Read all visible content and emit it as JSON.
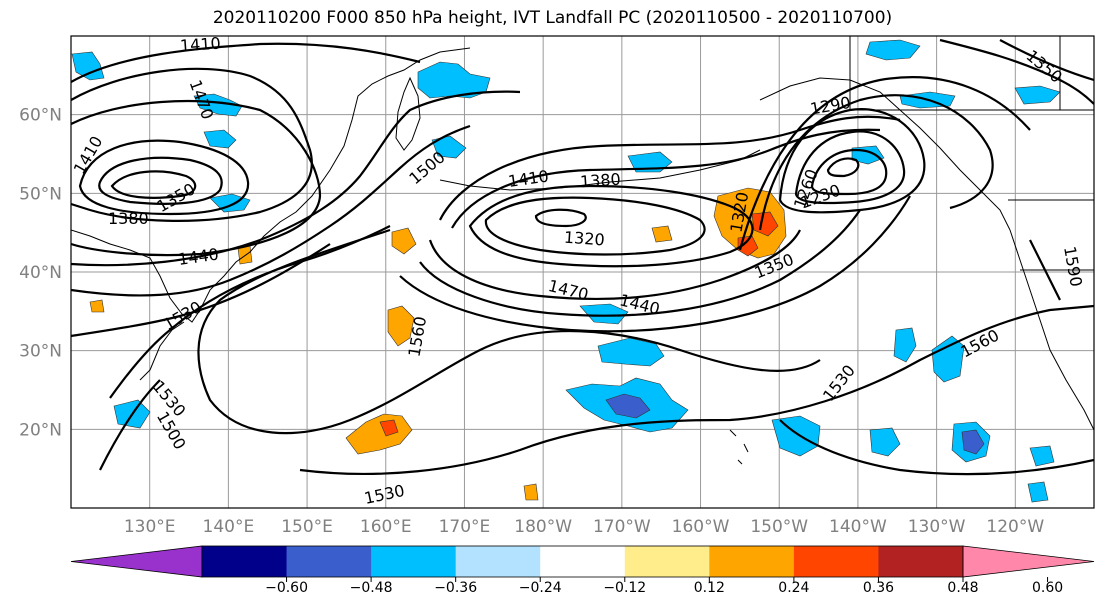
{
  "title": "2020110200 F000 850 hPa height, IVT Landfall PC (2020110500 - 2020110700)",
  "map": {
    "lon_range": [
      120,
      250
    ],
    "lat_range": [
      10,
      70
    ],
    "lat_ticks": [
      {
        "value": 20,
        "label": "20°N"
      },
      {
        "value": 30,
        "label": "30°N"
      },
      {
        "value": 40,
        "label": "40°N"
      },
      {
        "value": 50,
        "label": "50°N"
      },
      {
        "value": 60,
        "label": "60°N"
      }
    ],
    "lon_ticks": [
      {
        "value": 130,
        "label": "130°E"
      },
      {
        "value": 140,
        "label": "140°E"
      },
      {
        "value": 150,
        "label": "150°E"
      },
      {
        "value": 160,
        "label": "160°E"
      },
      {
        "value": 170,
        "label": "170°E"
      },
      {
        "value": 180,
        "label": "180°W"
      },
      {
        "value": 190,
        "label": "170°W"
      },
      {
        "value": 200,
        "label": "160°W"
      },
      {
        "value": 210,
        "label": "150°W"
      },
      {
        "value": 220,
        "label": "140°W"
      },
      {
        "value": 230,
        "label": "130°W"
      },
      {
        "value": 240,
        "label": "120°W"
      }
    ],
    "grid": true,
    "height_contour_labels": [
      "1410",
      "1470",
      "1410",
      "1350",
      "1380",
      "1440",
      "1530",
      "1530",
      "1500",
      "1530",
      "1560",
      "1500",
      "1410",
      "1380",
      "1320",
      "1470",
      "1440",
      "1320",
      "1260",
      "1230",
      "1350",
      "1290",
      "1350",
      "1590",
      "1560",
      "1530"
    ]
  },
  "colorbar": {
    "ticks": [
      "−0.60",
      "−0.48",
      "−0.36",
      "−0.24",
      "−0.12",
      "0.12",
      "0.24",
      "0.36",
      "0.48",
      "0.60"
    ],
    "colors": [
      "#9932CC",
      "#00008B",
      "#3A5FCD",
      "#00BFFF",
      "#B2E2FF",
      "#FFFFFF",
      "#FFEC8B",
      "#FFA500",
      "#FF4500",
      "#B22222",
      "#FF88AA"
    ]
  }
}
